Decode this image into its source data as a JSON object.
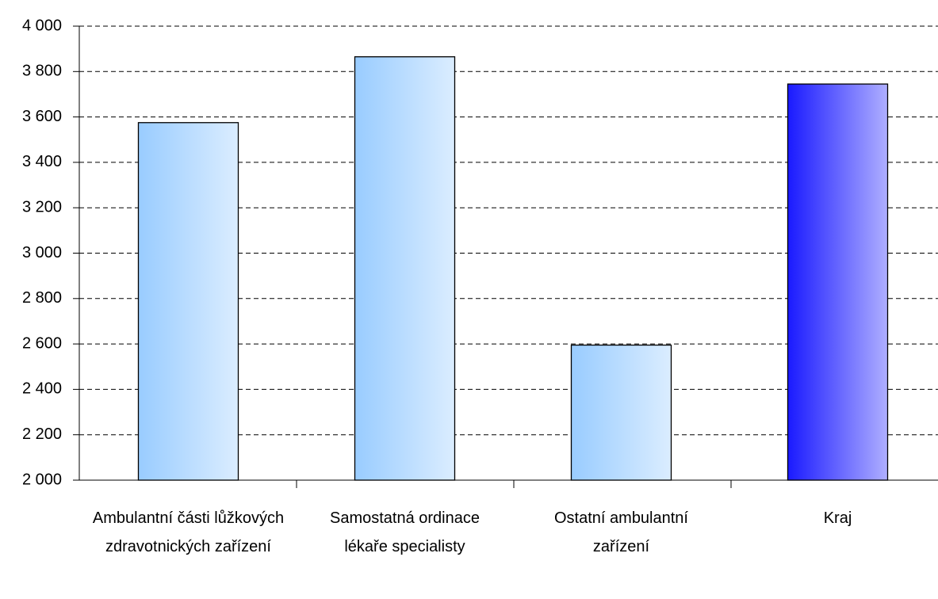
{
  "chart_data": {
    "type": "bar",
    "categories": [
      "Ambulantní části lůžkových zdravotnických zařízení",
      "Samostatná ordinace lékaře specialisty",
      "Ostatní ambulantní zařízení",
      "Kraj"
    ],
    "values": [
      3575,
      3865,
      2595,
      3745
    ],
    "colors": [
      "#99ccff",
      "#99ccff",
      "#99ccff",
      "#1a1aff"
    ],
    "ylim": [
      2000,
      4000
    ],
    "yticks": [
      {
        "value": 2000,
        "label": "2 000"
      },
      {
        "value": 2200,
        "label": "2 200"
      },
      {
        "value": 2400,
        "label": "2 400"
      },
      {
        "value": 2600,
        "label": "2 600"
      },
      {
        "value": 2800,
        "label": "2 800"
      },
      {
        "value": 3000,
        "label": "3 000"
      },
      {
        "value": 3200,
        "label": "3 200"
      },
      {
        "value": 3400,
        "label": "3 400"
      },
      {
        "value": 3600,
        "label": "3 600"
      },
      {
        "value": 3800,
        "label": "3 800"
      },
      {
        "value": 4000,
        "label": "4 000"
      }
    ],
    "grid": true
  }
}
